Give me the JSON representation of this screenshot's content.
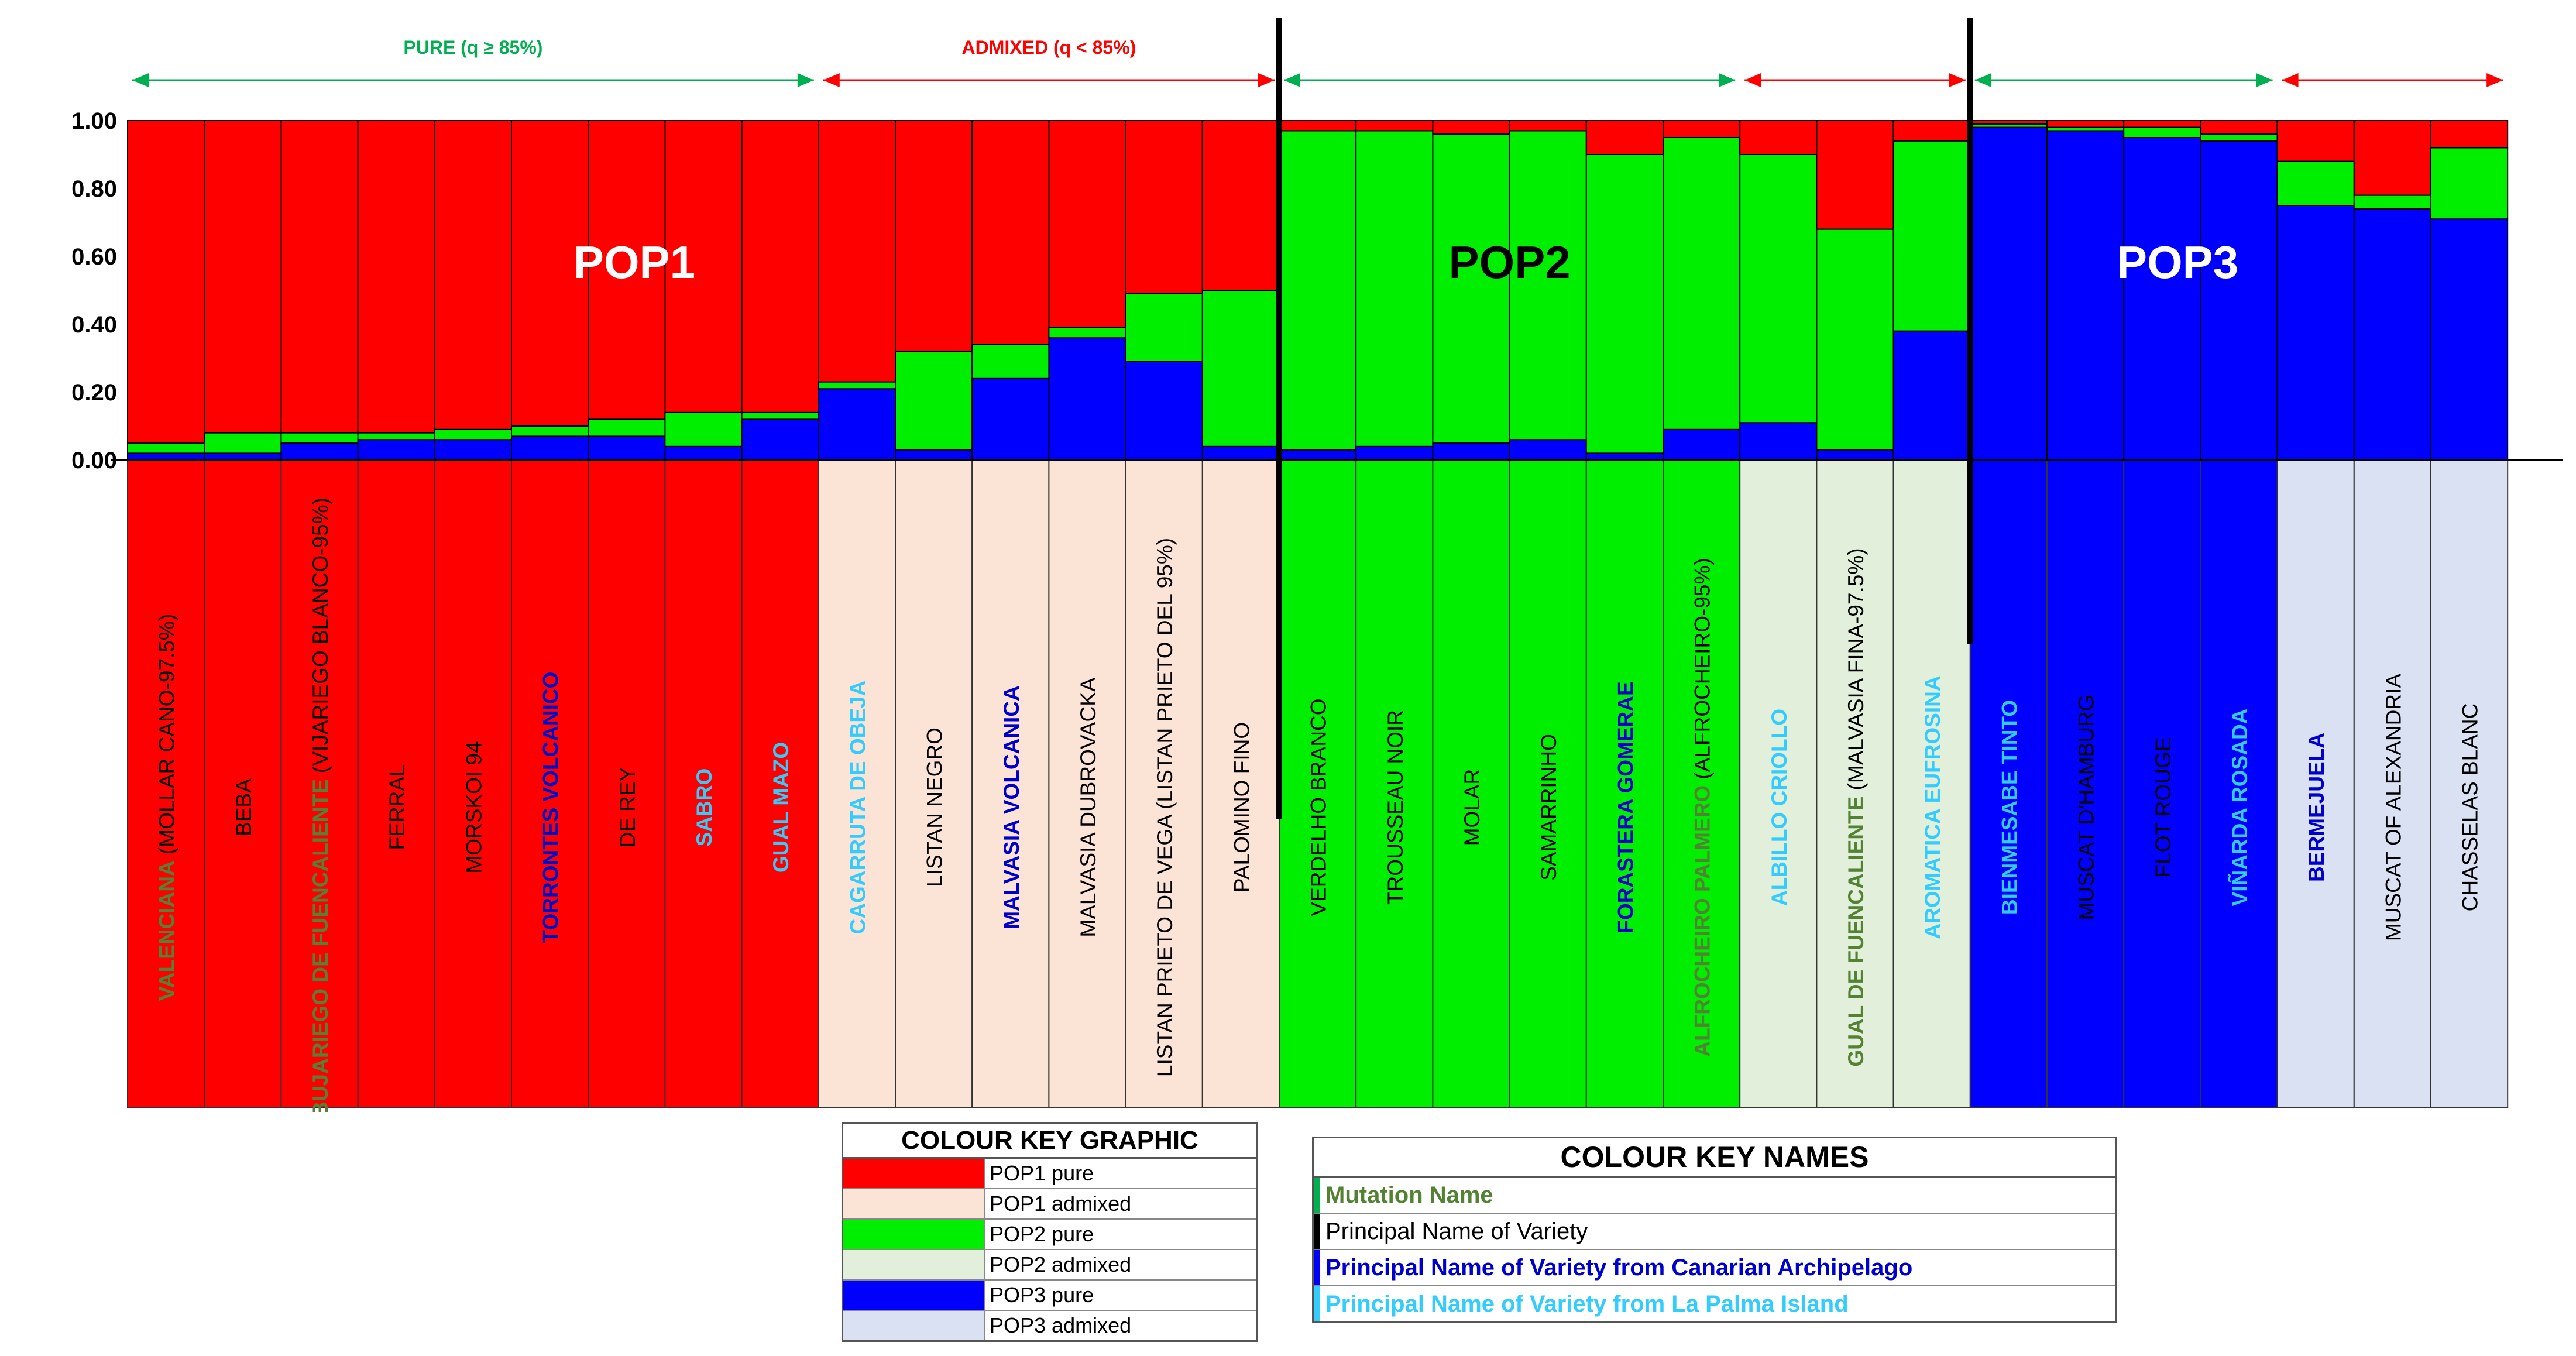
{
  "colors": {
    "pop1": "#ff0000",
    "pop2": "#00ee00",
    "pop3": "#0000ff",
    "pop1_admixed": "#fbe3d6",
    "pop2_admixed": "#e2efda",
    "pop3_admixed": "#d9e1f2",
    "mutation": "#548235",
    "principal": "#000000",
    "canarian": "#0000cc",
    "la_palma": "#33ccff",
    "pure_arrow": "#00b050",
    "admixed_arrow": "#ff0000"
  },
  "chart_data": {
    "type": "bar",
    "stacked": true,
    "ylim": [
      0,
      1
    ],
    "y_ticks": [
      "0.00",
      "0.20",
      "0.40",
      "0.60",
      "0.80",
      "1.00"
    ],
    "series_names": [
      "POP3",
      "POP2",
      "POP1"
    ],
    "cluster_labels": [
      "POP1",
      "POP2",
      "POP3"
    ],
    "group_annotations": [
      {
        "label": "PURE (q ≥ 85%)",
        "start": 0,
        "end": 9,
        "type": "pure"
      },
      {
        "label": "ADMIXED (q < 85%)",
        "start": 9,
        "end": 15,
        "type": "admixed"
      },
      {
        "label": "",
        "start": 15,
        "end": 21,
        "type": "pure"
      },
      {
        "label": "",
        "start": 21,
        "end": 24,
        "type": "admixed"
      },
      {
        "label": "",
        "start": 24,
        "end": 28,
        "type": "pure"
      },
      {
        "label": "",
        "start": 28,
        "end": 31,
        "type": "admixed"
      }
    ],
    "separators_after": [
      14,
      23
    ],
    "bars": [
      {
        "name": "VALENCIANA",
        "suffix": "(MOLLAR CANO-97.5%)",
        "style": "mutation",
        "cell": "pop1",
        "values": [
          0.02,
          0.03,
          0.95
        ]
      },
      {
        "name": "BEBA",
        "suffix": "",
        "style": "principal",
        "cell": "pop1",
        "values": [
          0.02,
          0.06,
          0.92
        ]
      },
      {
        "name": "BUJARIEGO DE FUENCALIENTE",
        "suffix": "(VIJARIEGO BLANCO-95%)",
        "style": "mutation",
        "cell": "pop1",
        "values": [
          0.05,
          0.03,
          0.92
        ]
      },
      {
        "name": "FERRAL",
        "suffix": "",
        "style": "principal",
        "cell": "pop1",
        "values": [
          0.06,
          0.02,
          0.92
        ]
      },
      {
        "name": "MORSKOI 94",
        "suffix": "",
        "style": "principal",
        "cell": "pop1",
        "values": [
          0.06,
          0.03,
          0.91
        ]
      },
      {
        "name": "TORRONTES VOLCANICO",
        "suffix": "",
        "style": "canarian",
        "cell": "pop1",
        "values": [
          0.07,
          0.03,
          0.9
        ]
      },
      {
        "name": "DE REY",
        "suffix": "",
        "style": "principal",
        "cell": "pop1",
        "values": [
          0.07,
          0.05,
          0.88
        ]
      },
      {
        "name": "SABRO",
        "suffix": "",
        "style": "la_palma",
        "cell": "pop1",
        "values": [
          0.04,
          0.1,
          0.86
        ]
      },
      {
        "name": "GUAL MAZO",
        "suffix": "",
        "style": "la_palma",
        "cell": "pop1",
        "values": [
          0.12,
          0.02,
          0.86
        ]
      },
      {
        "name": "CAGARRUTA DE OBEJA",
        "suffix": "",
        "style": "la_palma",
        "cell": "pop1_admixed",
        "values": [
          0.21,
          0.02,
          0.77
        ]
      },
      {
        "name": "LISTAN NEGRO",
        "suffix": "",
        "style": "principal",
        "cell": "pop1_admixed",
        "values": [
          0.03,
          0.29,
          0.68
        ]
      },
      {
        "name": "MALVASIA VOLCANICA",
        "suffix": "",
        "style": "canarian",
        "cell": "pop1_admixed",
        "values": [
          0.24,
          0.1,
          0.66
        ]
      },
      {
        "name": "MALVASIA DUBROVACKA",
        "suffix": "",
        "style": "principal",
        "cell": "pop1_admixed",
        "values": [
          0.36,
          0.03,
          0.61
        ]
      },
      {
        "name": "LISTAN PRIETO DE VEGA",
        "suffix": "(LISTAN PRIETO DEL 95%)",
        "style": "principal",
        "cell": "pop1_admixed",
        "values": [
          0.29,
          0.2,
          0.51
        ]
      },
      {
        "name": "PALOMINO FINO",
        "suffix": "",
        "style": "principal",
        "cell": "pop1_admixed",
        "values": [
          0.04,
          0.46,
          0.5
        ]
      },
      {
        "name": "VERDELHO BRANCO",
        "suffix": "",
        "style": "principal",
        "cell": "pop2",
        "values": [
          0.03,
          0.94,
          0.03
        ]
      },
      {
        "name": "TROUSSEAU NOIR",
        "suffix": "",
        "style": "principal",
        "cell": "pop2",
        "values": [
          0.04,
          0.93,
          0.03
        ]
      },
      {
        "name": "MOLAR",
        "suffix": "",
        "style": "principal",
        "cell": "pop2",
        "values": [
          0.05,
          0.91,
          0.04
        ]
      },
      {
        "name": "SAMARRINHO",
        "suffix": "",
        "style": "principal",
        "cell": "pop2",
        "values": [
          0.06,
          0.91,
          0.03
        ]
      },
      {
        "name": "FORASTERA GOMERAE",
        "suffix": "",
        "style": "canarian",
        "cell": "pop2",
        "values": [
          0.02,
          0.88,
          0.1
        ]
      },
      {
        "name": "ALFROCHEIRO PALMERO",
        "suffix": "(ALFROCHEIRO-95%)",
        "style": "mutation",
        "cell": "pop2",
        "values": [
          0.09,
          0.86,
          0.05
        ]
      },
      {
        "name": "ALBILLO CRIOLLO",
        "suffix": "",
        "style": "la_palma",
        "cell": "pop2_admixed",
        "values": [
          0.11,
          0.79,
          0.1
        ]
      },
      {
        "name": "GUAL DE FUENCALIENTE",
        "suffix": "(MALVASIA FINA-97.5%)",
        "style": "mutation",
        "cell": "pop2_admixed",
        "values": [
          0.03,
          0.65,
          0.32
        ]
      },
      {
        "name": "AROMATICA EUFROSINA",
        "suffix": "",
        "style": "la_palma",
        "cell": "pop2_admixed",
        "values": [
          0.38,
          0.56,
          0.06
        ]
      },
      {
        "name": "BIENMESABE TINTO",
        "suffix": "",
        "style": "la_palma",
        "cell": "pop3",
        "values": [
          0.98,
          0.01,
          0.01
        ]
      },
      {
        "name": "MUSCAT D'HAMBURG",
        "suffix": "",
        "style": "principal",
        "cell": "pop3",
        "values": [
          0.97,
          0.01,
          0.02
        ]
      },
      {
        "name": "FLOT ROUGE",
        "suffix": "",
        "style": "principal",
        "cell": "pop3",
        "values": [
          0.95,
          0.03,
          0.02
        ]
      },
      {
        "name": "VIÑARDA ROSADA",
        "suffix": "",
        "style": "la_palma",
        "cell": "pop3",
        "values": [
          0.94,
          0.02,
          0.04
        ]
      },
      {
        "name": "BERMEJUELA",
        "suffix": "",
        "style": "canarian",
        "cell": "pop3_admixed",
        "values": [
          0.75,
          0.13,
          0.12
        ]
      },
      {
        "name": "MUSCAT OF ALEXANDRIA",
        "suffix": "",
        "style": "principal",
        "cell": "pop3_admixed",
        "values": [
          0.74,
          0.04,
          0.22
        ]
      },
      {
        "name": "CHASSELAS BLANC",
        "suffix": "",
        "style": "principal",
        "cell": "pop3_admixed",
        "values": [
          0.71,
          0.21,
          0.08
        ]
      }
    ]
  },
  "key_graphic": {
    "title": "COLOUR KEY GRAPHIC",
    "rows": [
      {
        "label": "POP1 pure",
        "color": "#ff0000"
      },
      {
        "label": "POP1 admixed",
        "color": "#fbe3d6"
      },
      {
        "label": "POP2 pure",
        "color": "#00ee00"
      },
      {
        "label": "POP2 admixed",
        "color": "#e2efda"
      },
      {
        "label": "POP3 pure",
        "color": "#0000ff"
      },
      {
        "label": "POP3 admixed",
        "color": "#d9e1f2"
      }
    ]
  },
  "key_names": {
    "title": "COLOUR KEY NAMES",
    "rows": [
      {
        "label": "Mutation Name",
        "color": "#548235",
        "bar": "#00b050",
        "bold": true
      },
      {
        "label": "Principal Name of Variety",
        "color": "#000000",
        "bar": "#000000",
        "bold": false
      },
      {
        "label": "Principal Name of Variety from Canarian Archipelago",
        "color": "#0000cc",
        "bar": "#0000ff",
        "bold": true
      },
      {
        "label": "Principal Name of Variety from La Palma Island",
        "color": "#33ccff",
        "bar": "#33ccff",
        "bold": true
      }
    ]
  }
}
